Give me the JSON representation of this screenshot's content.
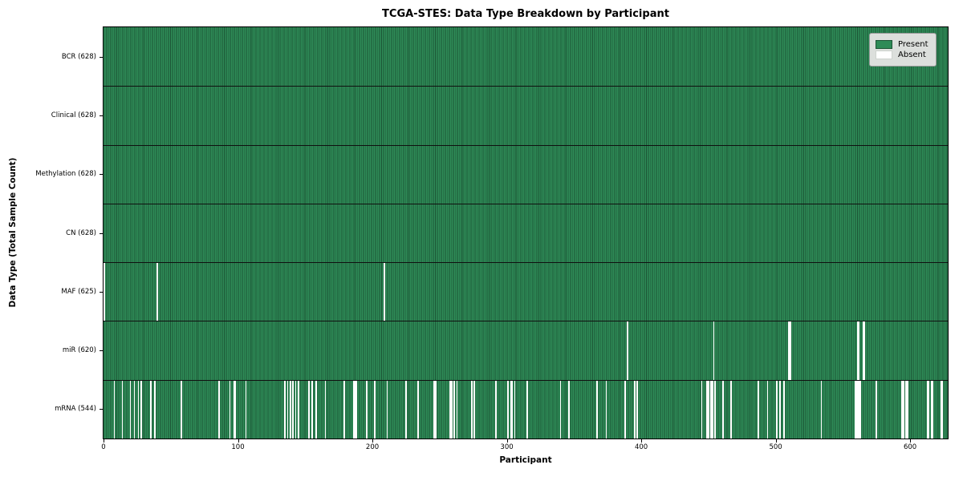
{
  "legend": {
    "items": [
      {
        "label": "Present",
        "color": "#2e8b57"
      },
      {
        "label": "Absent",
        "color": "#ffffff"
      }
    ]
  },
  "chart_data": {
    "type": "heatmap",
    "title": "TCGA-STES: Data Type Breakdown by Participant",
    "xlabel": "Participant",
    "ylabel": "Data Type (Total Sample Count)",
    "x_range": [
      0,
      628
    ],
    "n_participants": 628,
    "x_ticks": [
      0,
      100,
      200,
      300,
      400,
      500,
      600
    ],
    "grid": false,
    "legend_position": "upper right",
    "colors": {
      "present": "#2e8b57",
      "present_stripe": "#1c5435",
      "absent": "#ffffff",
      "separator": "#101010"
    },
    "rows": [
      {
        "label": "BCR (628)",
        "data_type": "BCR",
        "present_count": 628,
        "absent_count": 0,
        "absent_participants": []
      },
      {
        "label": "Clinical (628)",
        "data_type": "Clinical",
        "present_count": 628,
        "absent_count": 0,
        "absent_participants": []
      },
      {
        "label": "Methylation (628)",
        "data_type": "Methylation",
        "present_count": 628,
        "absent_count": 0,
        "absent_participants": []
      },
      {
        "label": "CN (628)",
        "data_type": "CN",
        "present_count": 628,
        "absent_count": 0,
        "absent_participants": []
      },
      {
        "label": "MAF (625)",
        "data_type": "MAF",
        "present_count": 625,
        "absent_count": 3,
        "absent_participants": [
          0,
          40,
          209
        ]
      },
      {
        "label": "miR (620)",
        "data_type": "miR",
        "present_count": 620,
        "absent_count": 8,
        "absent_participants": [
          390,
          454,
          510,
          511,
          561,
          562,
          565,
          566
        ]
      },
      {
        "label": "mRNA (544)",
        "data_type": "mRNA",
        "present_count": 544,
        "absent_count": 84,
        "absent_participants": [
          8,
          14,
          20,
          23,
          26,
          28,
          35,
          38,
          58,
          86,
          94,
          97,
          98,
          106,
          135,
          137,
          139,
          141,
          143,
          145,
          153,
          155,
          158,
          165,
          179,
          186,
          187,
          188,
          196,
          202,
          211,
          225,
          234,
          246,
          247,
          258,
          259,
          261,
          263,
          274,
          276,
          292,
          301,
          303,
          304,
          306,
          315,
          340,
          346,
          367,
          374,
          388,
          395,
          397,
          445,
          449,
          450,
          452,
          453,
          455,
          461,
          467,
          487,
          494,
          501,
          503,
          506,
          534,
          559,
          560,
          561,
          562,
          563,
          575,
          594,
          595,
          597,
          598,
          613,
          614,
          616,
          617,
          623,
          624
        ]
      }
    ]
  }
}
